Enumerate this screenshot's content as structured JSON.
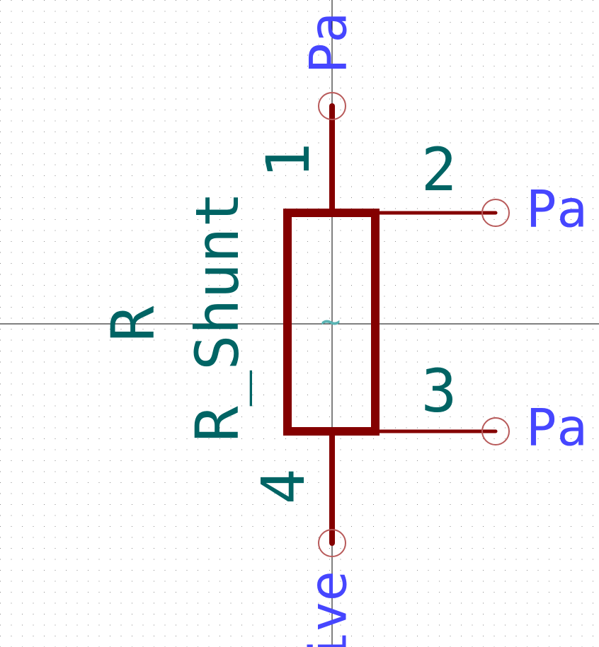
{
  "component": {
    "reference": "R",
    "value": "R_Shunt",
    "symbol_marker": "~"
  },
  "pins": [
    {
      "number": "1",
      "electrical_type": "Pa"
    },
    {
      "number": "2",
      "electrical_type": "Pa"
    },
    {
      "number": "3",
      "electrical_type": "Pa"
    },
    {
      "number": "4",
      "electrical_type": "ive"
    }
  ],
  "colors": {
    "background": "#ffffff",
    "body": "#840000",
    "pin": "#840000",
    "pin_endpoint": "#b85a5a",
    "designator_text": "#006464",
    "pin_type_text": "#4646ff",
    "marker_text": "#5ab4b4",
    "crosshair": "#000000",
    "grid": "#8a8a8a"
  }
}
